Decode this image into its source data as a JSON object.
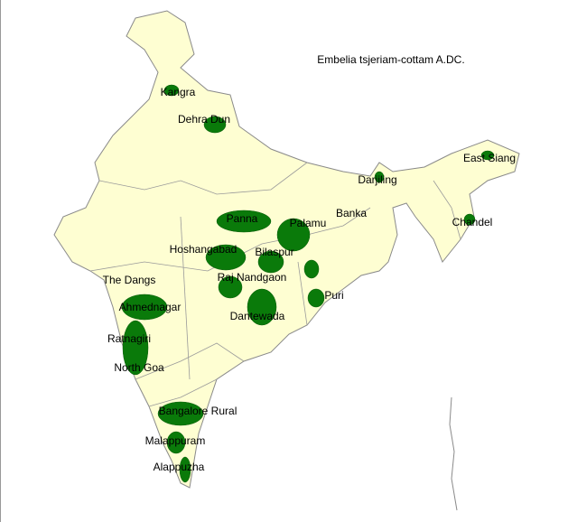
{
  "title": "Embelia tsjeriam-cottam A.DC.",
  "places": [
    "Kangra",
    "Dehra Dun",
    "East Siang",
    "Darjiling",
    "Banka",
    "Chandel",
    "Panna",
    "Palamu",
    "Hoshangabad",
    "Bilaspur",
    "The Dangs",
    "Raj Nandgaon",
    "Puri",
    "Ahmednagar",
    "Dantewada",
    "Ratnagiri",
    "North Goa",
    "Bangalore Rural",
    "Malappuram",
    "Alappuzha"
  ]
}
